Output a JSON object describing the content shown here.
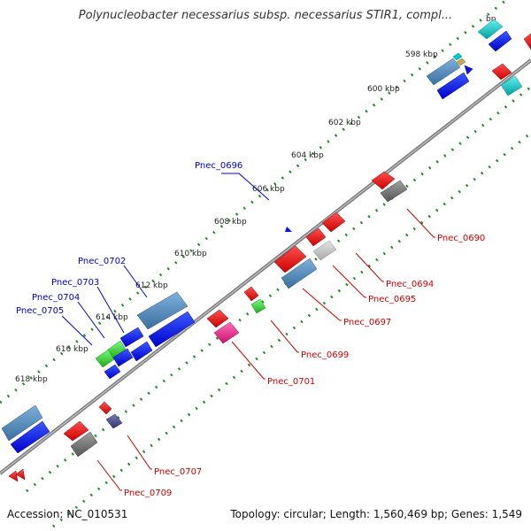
{
  "title": "Polynucleobacter necessarius subsp. necessarius STIR1, compl...",
  "footer": {
    "accession": "Accession: NC_010531",
    "summary": "Topology: circular; Length: 1,560,469 bp; Genes: 1,549"
  },
  "ticks": [
    "bp",
    "598 kbp",
    "600 kbp",
    "602 kbp",
    "604 kbp",
    "606 kbp",
    "608 kbp",
    "610 kbp",
    "612 kbp",
    "614 kbp",
    "616 kbp",
    "618 kbp"
  ],
  "gene_labels": [
    {
      "label": "Pnec_0696",
      "strand": "forward"
    },
    {
      "label": "Pnec_0702",
      "strand": "forward"
    },
    {
      "label": "Pnec_0703",
      "strand": "forward"
    },
    {
      "label": "Pnec_0704",
      "strand": "forward"
    },
    {
      "label": "Pnec_0705",
      "strand": "forward"
    },
    {
      "label": "Pnec_0690",
      "strand": "reverse"
    },
    {
      "label": "Pnec_0694",
      "strand": "reverse"
    },
    {
      "label": "Pnec_0695",
      "strand": "reverse"
    },
    {
      "label": "Pnec_0697",
      "strand": "reverse"
    },
    {
      "label": "Pnec_0699",
      "strand": "reverse"
    },
    {
      "label": "Pnec_0701",
      "strand": "reverse"
    },
    {
      "label": "Pnec_0707",
      "strand": "reverse"
    },
    {
      "label": "Pnec_0709",
      "strand": "reverse"
    }
  ],
  "colors": {
    "forward_label": "#0000cc",
    "reverse_label": "#cc0000",
    "backbone": "#808080",
    "tick_track": "#228b22",
    "gene_blue": "#0000ee",
    "gene_steel": "#4682b4",
    "gene_red": "#ee0000",
    "gene_green": "#22cc22",
    "gene_gray": "#707070",
    "gene_lightgray": "#c0c0c0",
    "gene_cyan": "#00c8c8",
    "gene_pink": "#ee2288",
    "gene_darkslate": "#4a4a8a"
  }
}
